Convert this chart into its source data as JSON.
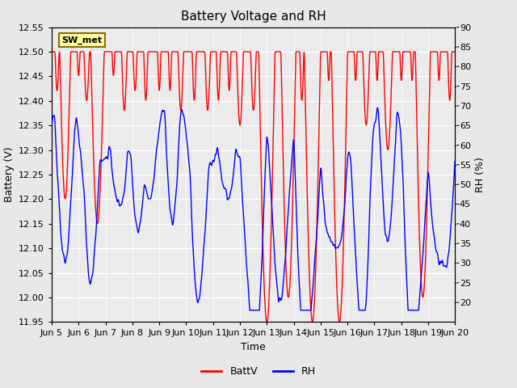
{
  "title": "Battery Voltage and RH",
  "xlabel": "Time",
  "ylabel_left": "Battery (V)",
  "ylabel_right": "RH (%)",
  "ylim_left": [
    11.95,
    12.55
  ],
  "ylim_right": [
    15,
    90
  ],
  "yticks_left": [
    11.95,
    12.0,
    12.05,
    12.1,
    12.15,
    12.2,
    12.25,
    12.3,
    12.35,
    12.4,
    12.45,
    12.5,
    12.55
  ],
  "yticks_right": [
    20,
    25,
    30,
    35,
    40,
    45,
    50,
    55,
    60,
    65,
    70,
    75,
    80,
    85,
    90
  ],
  "xtick_labels": [
    "Jun 5",
    "Jun 6",
    "Jun 7",
    "Jun 8",
    "Jun 9",
    "Jun 10",
    "Jun 11",
    "Jun 12",
    "Jun 13",
    "Jun 14",
    "Jun 15",
    "Jun 16",
    "Jun 17",
    "Jun 18",
    "Jun 19",
    "Jun 20"
  ],
  "legend_label_batt": "BattV",
  "legend_label_rh": "RH",
  "batt_color": "#FF0000",
  "rh_color": "#0000FF",
  "annotation_text": "SW_met",
  "annotation_bg": "#FFFF99",
  "annotation_border": "#8B6914",
  "bg_color": "#E8E8E8",
  "plot_bg": "#EBEBEB",
  "grid_color": "#FFFFFF",
  "title_fontsize": 11,
  "label_fontsize": 9,
  "tick_fontsize": 8
}
